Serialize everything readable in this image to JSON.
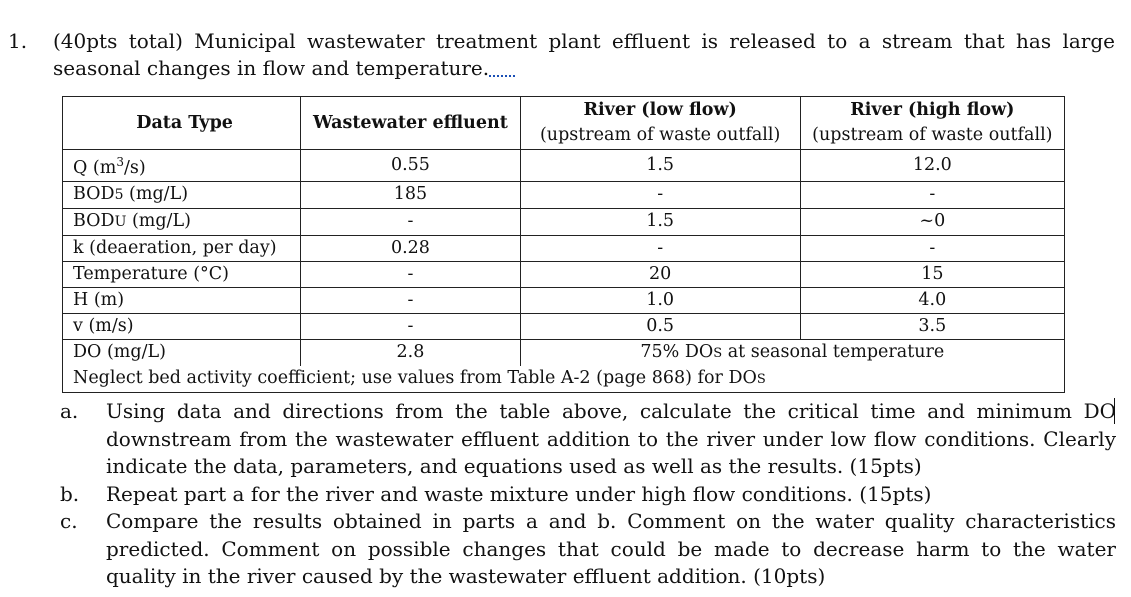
{
  "question": {
    "number": "1.",
    "text": "(40pts total) Municipal wastewater treatment plant effluent is released to a stream that has large seasonal changes in flow and temperature."
  },
  "table": {
    "headers": {
      "data_type": "Data Type",
      "wastewater": "Wastewater effluent",
      "river_low": "River (low flow)",
      "river_low_sub": "(upstream of waste outfall)",
      "river_high": "River (high flow)",
      "river_high_sub": "(upstream of waste outfall)"
    },
    "rows": [
      {
        "type": "Q (m³/s)",
        "wastewater": "0.55",
        "low": "1.5",
        "high": "12.0"
      },
      {
        "type": "BOD5 (mg/L)",
        "wastewater": "185",
        "low": "-",
        "high": "-"
      },
      {
        "type": "BODU (mg/L)",
        "wastewater": "-",
        "low": "1.5",
        "high": "~0"
      },
      {
        "type": "k (deaeration, per day)",
        "wastewater": "0.28",
        "low": "-",
        "high": "-"
      },
      {
        "type": "Temperature (°C)",
        "wastewater": "-",
        "low": "20",
        "high": "15"
      },
      {
        "type": "H (m)",
        "wastewater": "-",
        "low": "1.0",
        "high": "4.0"
      },
      {
        "type": "v (m/s)",
        "wastewater": "-",
        "low": "0.5",
        "high": "3.5"
      },
      {
        "type": "DO (mg/L)",
        "wastewater": "2.8",
        "river_merged": "75% DOS at seasonal temperature"
      }
    ],
    "note": "Neglect bed activity coefficient; use values from Table A-2 (page 868) for DOS"
  },
  "parts": [
    {
      "label": "a.",
      "text": "Using data and directions from the table above, calculate the critical time and minimum DO downstream from the wastewater effluent addition to the river under low flow conditions. Clearly indicate the data, parameters, and equations used as well as the results. (15pts)"
    },
    {
      "label": "b.",
      "text": "Repeat part a for the river and waste mixture under high flow conditions. (15pts)"
    },
    {
      "label": "c.",
      "text": "Compare the results obtained in parts a and b. Comment on the water quality characteristics predicted. Comment on possible changes that could be made to decrease harm to the water quality in the river caused by the wastewater effluent addition. (10pts)"
    }
  ]
}
